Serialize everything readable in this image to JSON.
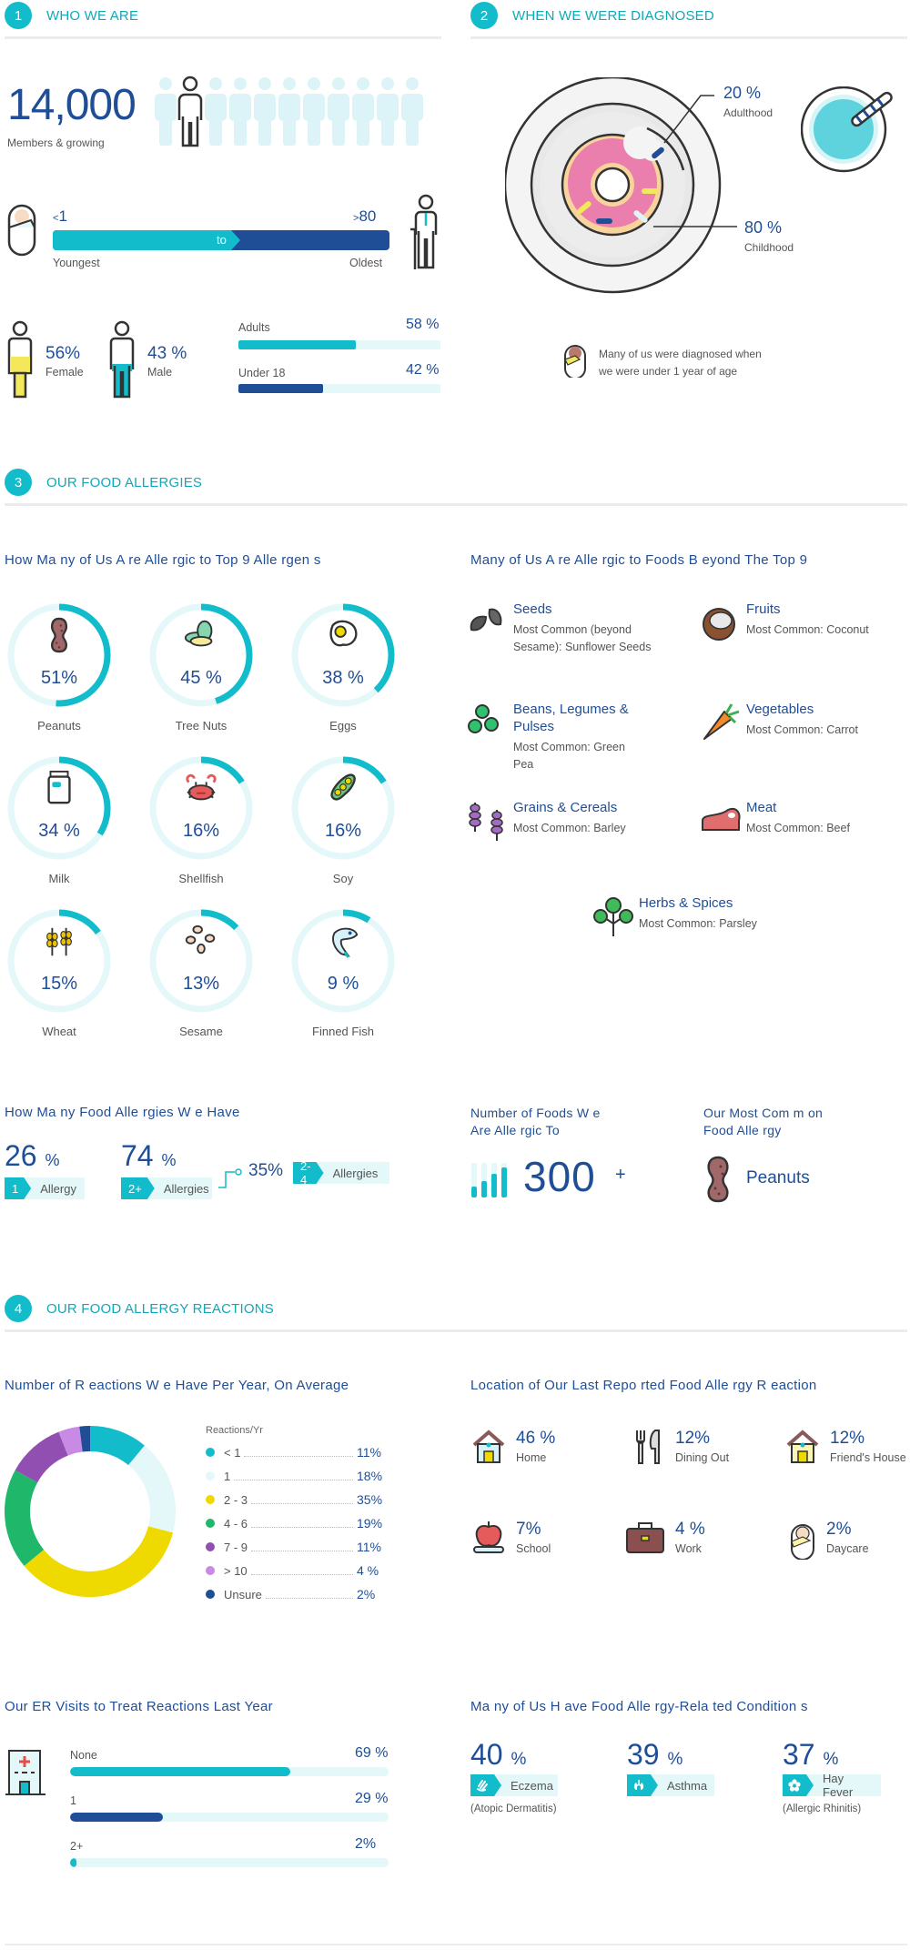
{
  "sections": [
    {
      "num": "1",
      "title": "WHO WE ARE"
    },
    {
      "num": "2",
      "title": "WHEN WE WERE DIAGNOSED"
    },
    {
      "num": "3",
      "title": "OUR FOOD ALLERGIES"
    },
    {
      "num": "4",
      "title": "OUR FOOD ALLERGY REACTIONS"
    }
  ],
  "who": {
    "members_count": "14,000",
    "members_plus": "+",
    "members_label": "Members & growing",
    "age_min_prefix": "<",
    "age_min": "1",
    "age_max_prefix": ">",
    "age_max": "80",
    "age_to": "to",
    "youngest_label": "Youngest",
    "oldest_label": "Oldest",
    "female_pct": "56%",
    "female_label": "Female",
    "male_pct": "43 %",
    "male_label": "Male",
    "adults_label": "Adults",
    "adults_pct": "58 %",
    "adults_value": 58,
    "under18_label": "Under 18",
    "under18_pct": "42 %",
    "under18_value": 42
  },
  "diagnosed": {
    "adulthood_pct": "20 %",
    "adulthood_label": "Adulthood",
    "childhood_pct": "80 %",
    "childhood_label": "Childhood",
    "note_line1": "Many of us were diagnosed when",
    "note_line2": "we were under 1 year of age"
  },
  "top9": {
    "title": "How Ma ny of Us A re Alle rgic to Top 9 Alle rgen s",
    "items": [
      {
        "label": "Peanuts",
        "pct": "51%",
        "value": 51,
        "icon": "peanut-icon"
      },
      {
        "label": "Tree Nuts",
        "pct": "45 %",
        "value": 45,
        "icon": "tree-nut-icon"
      },
      {
        "label": "Eggs",
        "pct": "38 %",
        "value": 38,
        "icon": "egg-icon"
      },
      {
        "label": "Milk",
        "pct": "34 %",
        "value": 34,
        "icon": "milk-carton-icon"
      },
      {
        "label": "Shellfish",
        "pct": "16%",
        "value": 16,
        "icon": "crab-icon"
      },
      {
        "label": "Soy",
        "pct": "16%",
        "value": 16,
        "icon": "soybean-icon"
      },
      {
        "label": "Wheat",
        "pct": "15%",
        "value": 15,
        "icon": "wheat-icon"
      },
      {
        "label": "Sesame",
        "pct": "13%",
        "value": 13,
        "icon": "sesame-icon"
      },
      {
        "label": "Finned Fish",
        "pct": "9 %",
        "value": 9,
        "icon": "fish-icon"
      }
    ]
  },
  "beyond": {
    "title": "Many of Us A re Alle rgic to Foods B eyond The Top 9",
    "items": [
      {
        "title": "Seeds",
        "desc": "Most Common    (beyond Sesame):  Sunflower Seeds",
        "icon": "sunflower-seeds-icon"
      },
      {
        "title": "Fruits",
        "desc": "Most Common: Coconut",
        "icon": "coconut-icon"
      },
      {
        "title": "Beans, Legumes & Pulses",
        "desc": "Most Common: Green Pea",
        "icon": "peas-icon"
      },
      {
        "title": "Vegetables",
        "desc": "Most Common: Carrot",
        "icon": "carrot-icon"
      },
      {
        "title": "Grains & Cereals",
        "desc": "Most Common: Barley",
        "icon": "barley-icon"
      },
      {
        "title": "Meat",
        "desc": "Most Common: Beef",
        "icon": "steak-icon"
      },
      {
        "title": "Herbs & Spices",
        "desc": "Most Common: Parsley",
        "icon": "parsley-icon"
      }
    ]
  },
  "how_many": {
    "title": "How Ma ny Food Alle rgies W e Have",
    "one_pct": "26",
    "one_key": "1",
    "one_label": "Allergy",
    "two_pct": "74",
    "two_key": "2+",
    "two_label": "Allergies",
    "range_pct": "35%",
    "range_key": "2-4",
    "range_label": "Allergies",
    "pct_sign": "%"
  },
  "num_foods": {
    "title_line1": "Number of   Foods  W e",
    "title_line2": "Are Alle rgic  To",
    "value": "300",
    "plus": "+"
  },
  "most_common": {
    "title_line1": "Our Most  Com m on",
    "title_line2": "Food Alle rgy",
    "value": "Peanuts"
  },
  "reactions": {
    "title": "Number of R   eactions  W e Have Per Year, On Average",
    "legend_title": "Reactions/Yr"
  },
  "chart_data": {
    "type": "pie",
    "title": "Number of Reactions We Have Per Year, On Average",
    "legend_title": "Reactions/Yr",
    "categories": [
      "< 1",
      "1",
      "2 - 3",
      "4 - 6",
      "7 - 9",
      "> 10",
      "Unsure"
    ],
    "values": [
      11,
      18,
      35,
      19,
      11,
      4,
      2
    ],
    "labels": [
      "11%",
      "18%",
      "35%",
      "19%",
      "11%",
      "4 %",
      "2%"
    ],
    "colors": [
      "#12bccb",
      "#e4f7f9",
      "#eed900",
      "#1fb86a",
      "#9150b1",
      "#c98ae6",
      "#1f4e96"
    ],
    "donut": true,
    "legend_position": "right"
  },
  "location": {
    "title": "Location of Our    Last Repo rted  Food Alle  rgy R eaction",
    "items": [
      {
        "pct": "46 %",
        "label": "Home",
        "icon": "house-icon"
      },
      {
        "pct": "12%",
        "label": "Dining Out",
        "icon": "fork-knife-icon"
      },
      {
        "pct": "12%",
        "label": "Friend's House",
        "icon": "friend-house-icon"
      },
      {
        "pct": "7%",
        "label": "School",
        "icon": "apple-book-icon"
      },
      {
        "pct": "4 %",
        "label": "Work",
        "icon": "briefcase-icon"
      },
      {
        "pct": "2%",
        "label": "Daycare",
        "icon": "baby-icon"
      }
    ]
  },
  "er": {
    "title": "Our ER Visits to Treat Reactions Last Year",
    "items": [
      {
        "label": "None",
        "pct": "69 %",
        "value": 69,
        "color": "#12bccb"
      },
      {
        "label": "1",
        "pct": "29 %",
        "value": 29,
        "color": "#1f4e96"
      },
      {
        "label": "2+",
        "pct": "2%",
        "value": 2,
        "color": "#12bccb"
      }
    ]
  },
  "conditions": {
    "title": "Ma ny of Us H ave Food Alle  rgy-Rela ted  Condition  s",
    "items": [
      {
        "pct": "40",
        "label": "Eczema",
        "sub": "(Atopic Dermatitis)",
        "icon": "hand-icon"
      },
      {
        "pct": "39",
        "label": "Asthma",
        "sub": "",
        "icon": "lungs-icon"
      },
      {
        "pct": "37",
        "label": "Hay Fever",
        "sub": "(Allergic Rhinitis)",
        "icon": "flower-icon"
      }
    ],
    "pct_sign": "%"
  },
  "colors": {
    "teal": "#12bccb",
    "navy": "#1f4e96",
    "light": "#e4f7f9",
    "yellow": "#f3e85a"
  }
}
